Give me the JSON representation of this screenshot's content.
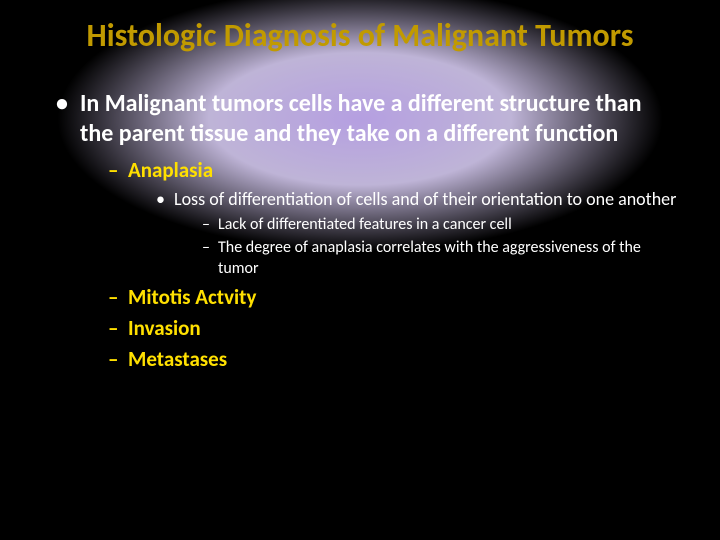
{
  "title": "Histologic Diagnosis of Malignant Tumors",
  "title_color": "#c19a00",
  "title_fontsize": 32,
  "body": {
    "lvl1": {
      "fontsize": 24,
      "color": "#ffffff",
      "items": [
        {
          "text": "In Malignant tumors cells have a different structure than the parent tissue and they take on a different function",
          "lvl2": {
            "fontsize": 21,
            "color": "#ffe000",
            "items": [
              {
                "text": "Anaplasia",
                "lvl3": {
                  "fontsize": 18,
                  "color": "#ffffff",
                  "items": [
                    {
                      "text": "Loss of differentiation of cells and of their orientation to one another",
                      "lvl4": {
                        "fontsize": 16,
                        "color": "#ffffff",
                        "items": [
                          {
                            "text": "Lack of differentiated features in a cancer cell"
                          },
                          {
                            "text": "The degree of anaplasia correlates with the aggressiveness of the tumor"
                          }
                        ]
                      }
                    }
                  ]
                }
              },
              {
                "text": "Mitotis Actvity"
              },
              {
                "text": "Invasion"
              },
              {
                "text": "Metastases"
              }
            ]
          }
        }
      ]
    }
  },
  "background": {
    "base": "#000000",
    "glow_center": "rgba(120,80,200,0.55)",
    "glow_mid": "rgba(70,40,140,0.35)"
  }
}
